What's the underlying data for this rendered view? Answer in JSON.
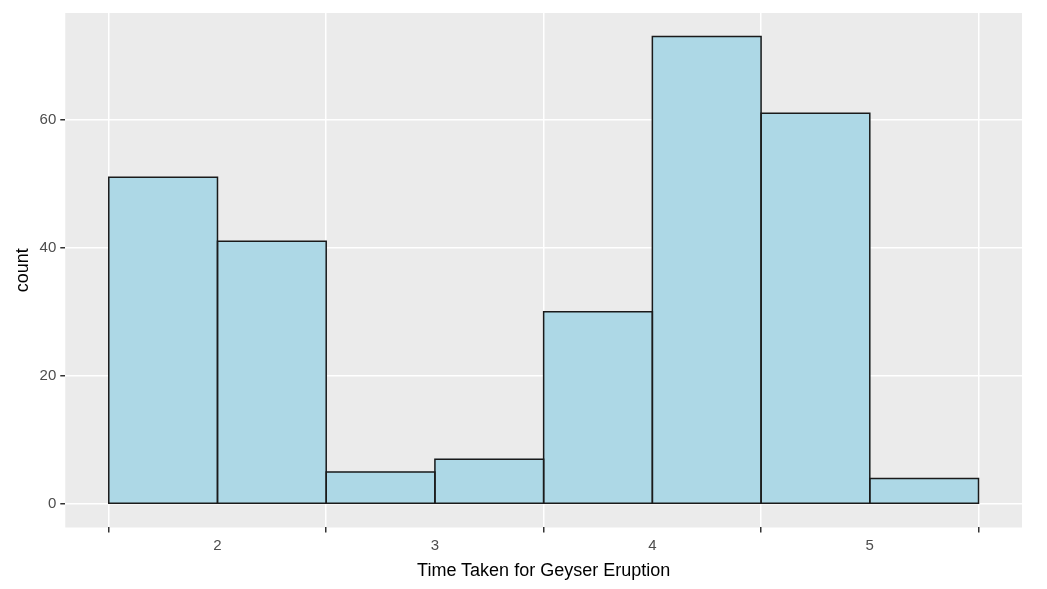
{
  "chart_data": {
    "type": "histogram",
    "xlabel": "Time Taken for Geyser Eruption",
    "ylabel": "count",
    "bins": [
      1.5,
      2,
      2.5,
      3,
      3.5,
      4,
      4.5,
      5,
      5.5
    ],
    "values": [
      51,
      41,
      5,
      7,
      30,
      73,
      61,
      4
    ],
    "color": "#add8e6",
    "xlim": [
      1.3,
      5.7
    ],
    "xticks": [
      2,
      3,
      4,
      5
    ],
    "ylim": [
      -3.65,
      76.65
    ],
    "yticks": [
      0,
      20,
      40,
      60
    ],
    "grid": true,
    "legend": false
  }
}
